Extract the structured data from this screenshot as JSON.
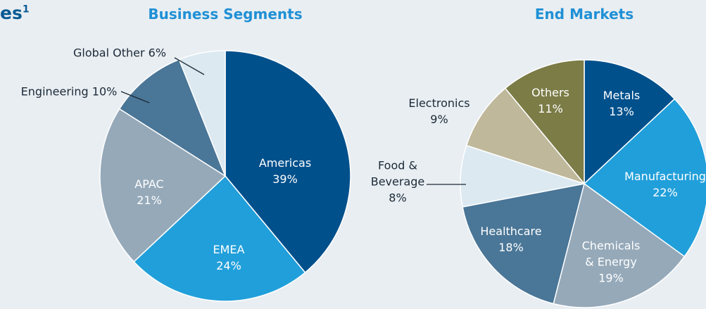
{
  "header": {
    "title_fragment": "es",
    "title_superscript": "1"
  },
  "chart_data": [
    {
      "type": "pie",
      "title": "Business Segments",
      "categories": [
        "Americas",
        "EMEA",
        "APAC",
        "Engineering",
        "Global Other"
      ],
      "values": [
        39,
        24,
        21,
        10,
        6
      ],
      "value_labels": [
        "39%",
        "24%",
        "21%",
        "10%",
        "6%"
      ],
      "colors": [
        "#00508c",
        "#219fda",
        "#95a9b9",
        "#4a7697",
        "#dce9f1"
      ]
    },
    {
      "type": "pie",
      "title": "End Markets",
      "categories": [
        "Metals",
        "Manufacturing",
        "Chemicals & Energy",
        "Healthcare",
        "Food & Beverage",
        "Electronics",
        "Others"
      ],
      "values": [
        13,
        22,
        19,
        18,
        8,
        9,
        11
      ],
      "value_labels": [
        "13%",
        "22%",
        "19%",
        "18%",
        "8%",
        "9%",
        "11%"
      ],
      "colors": [
        "#00508c",
        "#219fda",
        "#95a9b9",
        "#4a7697",
        "#dce9f1",
        "#bfb89b",
        "#7b7c46"
      ]
    }
  ]
}
